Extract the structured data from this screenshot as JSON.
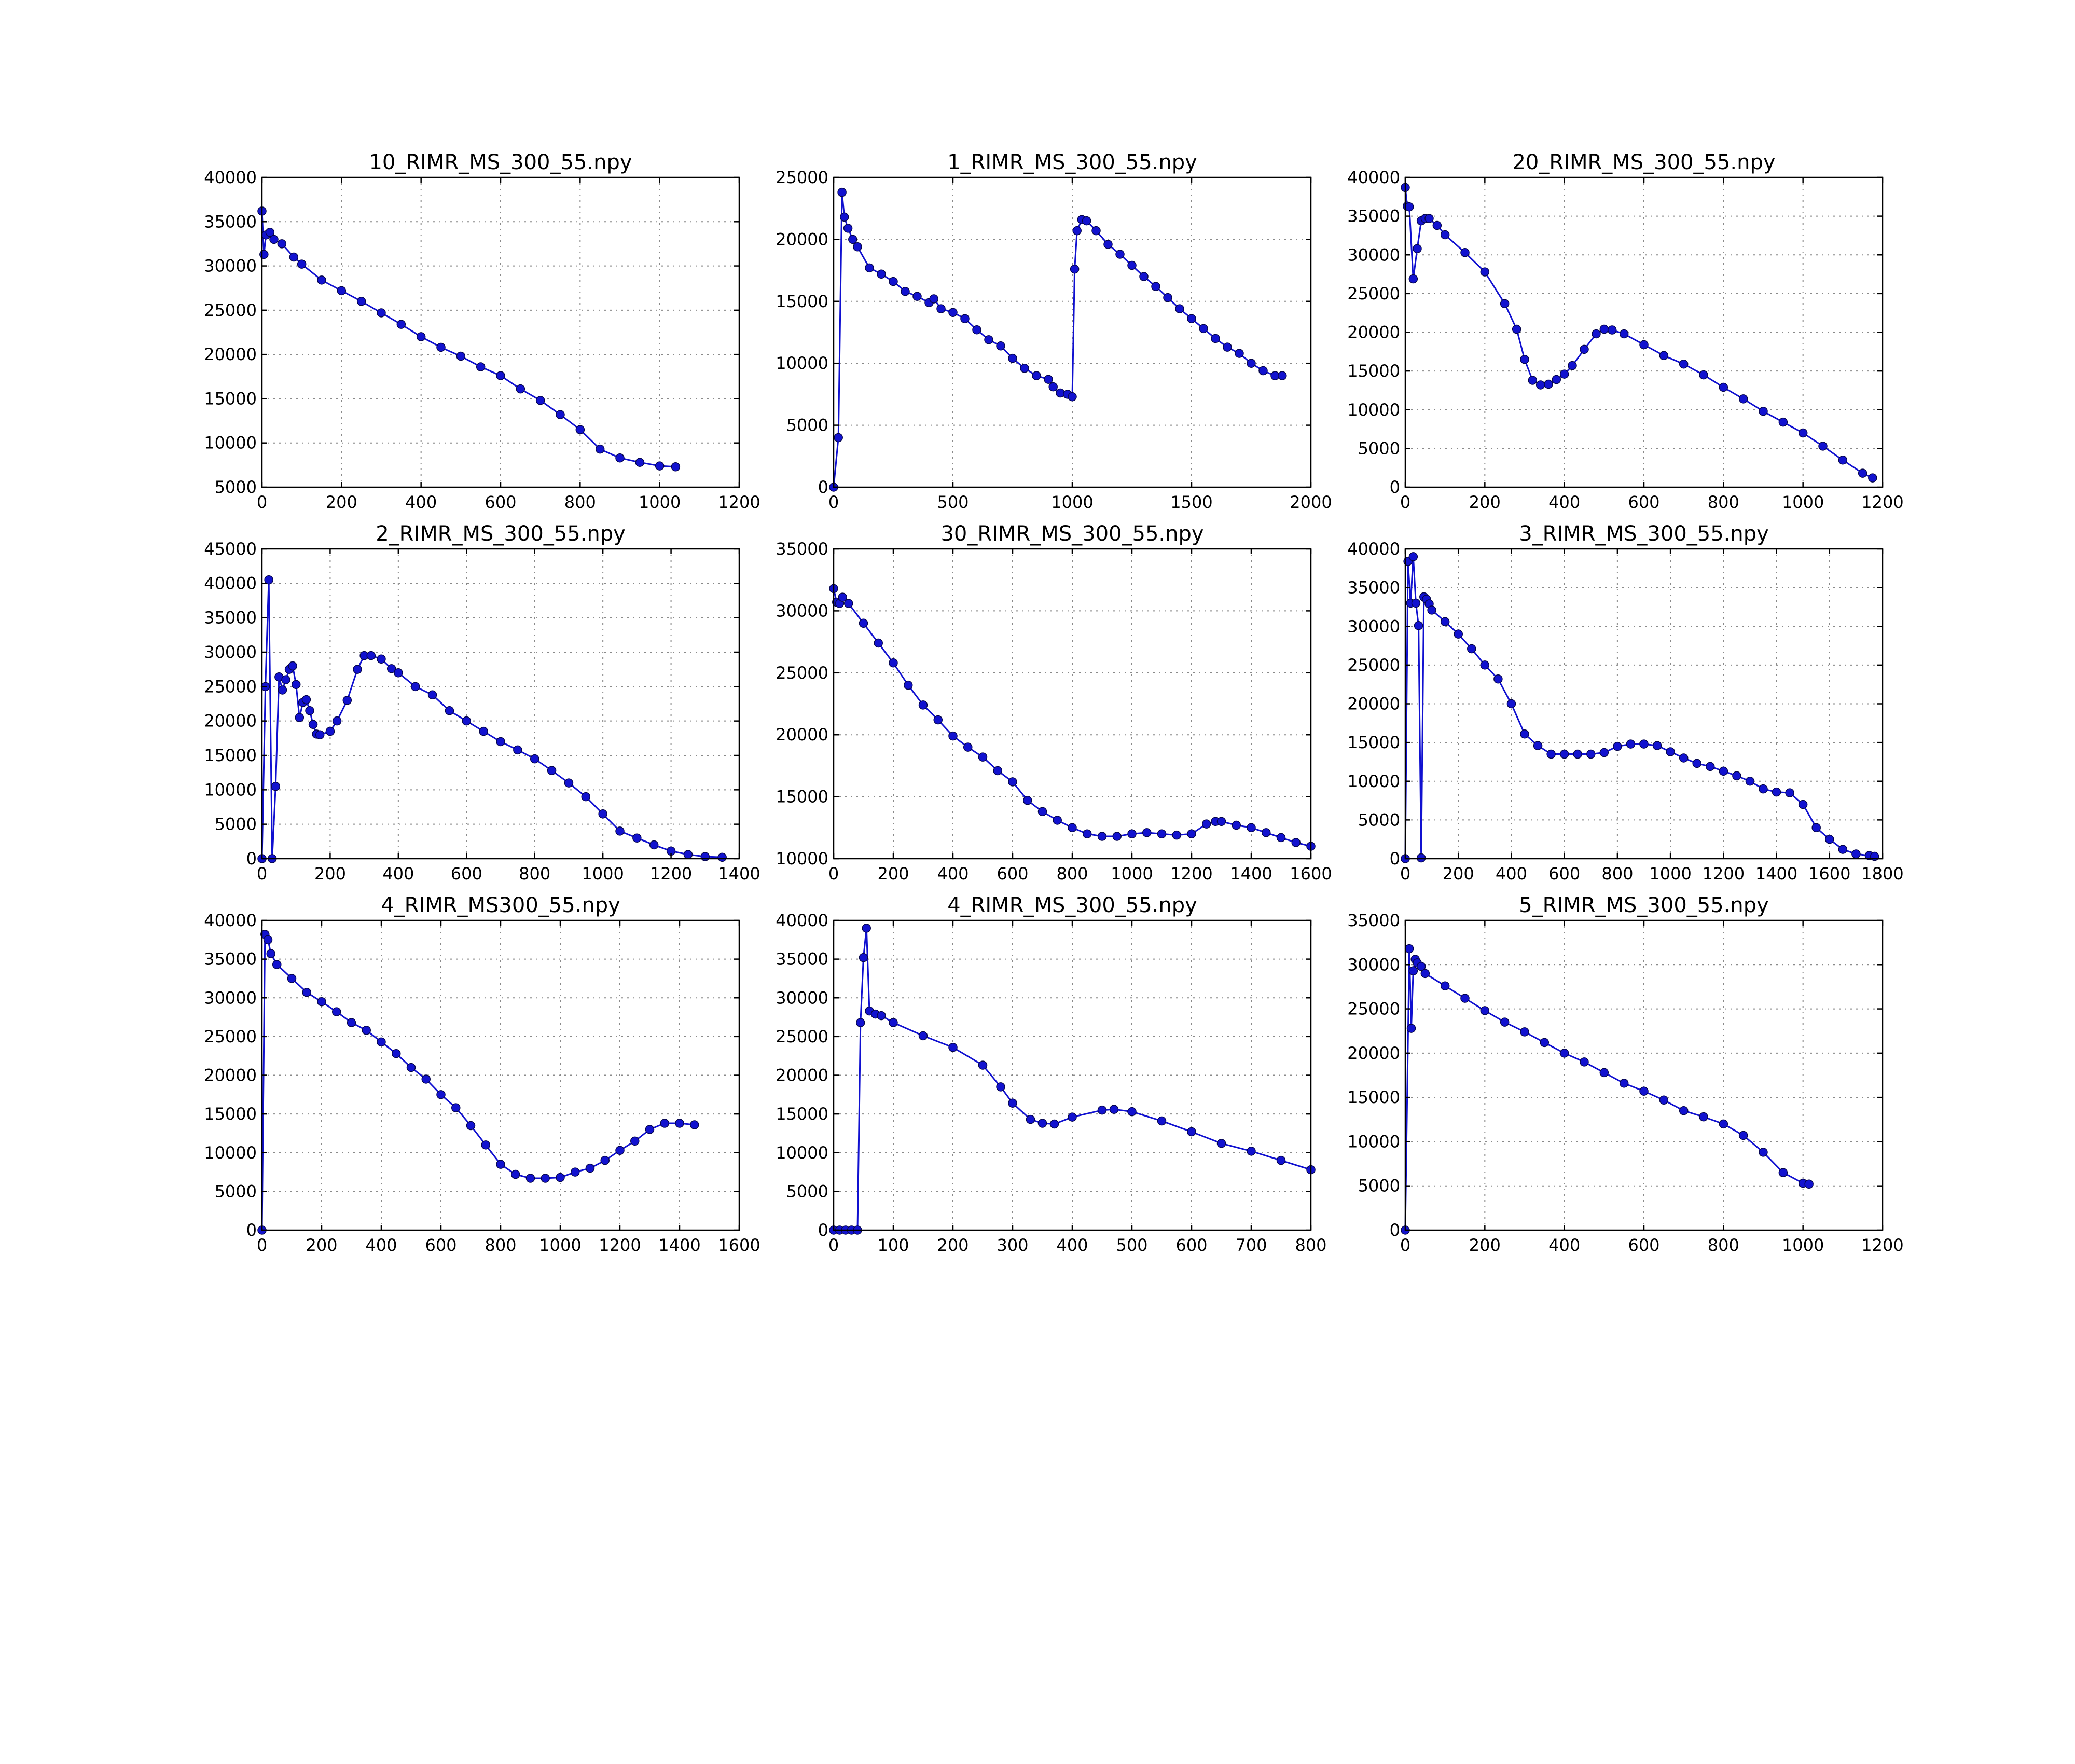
{
  "chart_data": [
    {
      "type": "line",
      "title": "10_RIMR_MS_300_55.npy",
      "xlim": [
        0,
        1200
      ],
      "ylim": [
        5000,
        40000
      ],
      "xticks": [
        0,
        200,
        400,
        600,
        800,
        1000,
        1200
      ],
      "yticks": [
        5000,
        10000,
        15000,
        20000,
        25000,
        30000,
        35000,
        40000
      ],
      "grid": true,
      "x": [
        0,
        5,
        10,
        20,
        30,
        50,
        80,
        100,
        150,
        200,
        250,
        300,
        350,
        400,
        450,
        500,
        550,
        600,
        650,
        700,
        750,
        800,
        850,
        900,
        950,
        1000,
        1040
      ],
      "y": [
        36200,
        31300,
        33500,
        33800,
        33000,
        32500,
        31000,
        30200,
        28400,
        27200,
        26000,
        24700,
        23400,
        22000,
        20800,
        19800,
        18600,
        17600,
        16100,
        14800,
        13200,
        11500,
        9300,
        8300,
        7800,
        7400,
        7300
      ]
    },
    {
      "type": "line",
      "title": "1_RIMR_MS_300_55.npy",
      "xlim": [
        0,
        2000
      ],
      "ylim": [
        0,
        25000
      ],
      "xticks": [
        0,
        500,
        1000,
        1500,
        2000
      ],
      "yticks": [
        0,
        5000,
        10000,
        15000,
        20000,
        25000
      ],
      "grid": true,
      "x": [
        0,
        20,
        35,
        45,
        60,
        80,
        100,
        150,
        200,
        250,
        300,
        350,
        400,
        420,
        450,
        500,
        550,
        600,
        650,
        700,
        750,
        800,
        850,
        900,
        920,
        950,
        980,
        1000,
        1010,
        1020,
        1040,
        1060,
        1100,
        1150,
        1200,
        1250,
        1300,
        1350,
        1400,
        1450,
        1500,
        1550,
        1600,
        1650,
        1700,
        1750,
        1800,
        1850,
        1880
      ],
      "y": [
        0,
        4000,
        23800,
        21800,
        20900,
        20000,
        19400,
        17700,
        17200,
        16600,
        15800,
        15400,
        14900,
        15200,
        14400,
        14100,
        13600,
        12700,
        11900,
        11400,
        10400,
        9600,
        9000,
        8700,
        8100,
        7600,
        7500,
        7300,
        17600,
        20700,
        21600,
        21500,
        20700,
        19600,
        18800,
        17900,
        17000,
        16200,
        15300,
        14400,
        13600,
        12800,
        12000,
        11300,
        10800,
        10000,
        9400,
        9000,
        9000
      ]
    },
    {
      "type": "line",
      "title": "20_RIMR_MS_300_55.npy",
      "xlim": [
        0,
        1200
      ],
      "ylim": [
        0,
        40000
      ],
      "xticks": [
        0,
        200,
        400,
        600,
        800,
        1000,
        1200
      ],
      "yticks": [
        0,
        5000,
        10000,
        15000,
        20000,
        25000,
        30000,
        35000,
        40000
      ],
      "grid": true,
      "x": [
        0,
        5,
        10,
        20,
        30,
        40,
        50,
        60,
        80,
        100,
        150,
        200,
        250,
        280,
        300,
        320,
        340,
        360,
        380,
        400,
        420,
        450,
        480,
        500,
        520,
        550,
        600,
        650,
        700,
        750,
        800,
        850,
        900,
        950,
        1000,
        1050,
        1100,
        1150,
        1175
      ],
      "y": [
        38700,
        36300,
        36200,
        26900,
        30800,
        34400,
        34700,
        34700,
        33800,
        32600,
        30300,
        27800,
        23700,
        20400,
        16500,
        13800,
        13200,
        13300,
        13900,
        14600,
        15700,
        17800,
        19800,
        20400,
        20300,
        19800,
        18400,
        17000,
        15900,
        14500,
        12900,
        11400,
        9800,
        8400,
        7000,
        5300,
        3500,
        1800,
        1200
      ]
    },
    {
      "type": "line",
      "title": "2_RIMR_MS_300_55.npy",
      "xlim": [
        0,
        1400
      ],
      "ylim": [
        0,
        45000
      ],
      "xticks": [
        0,
        200,
        400,
        600,
        800,
        1000,
        1200,
        1400
      ],
      "yticks": [
        0,
        5000,
        10000,
        15000,
        20000,
        25000,
        30000,
        35000,
        40000,
        45000
      ],
      "grid": true,
      "x": [
        0,
        10,
        20,
        30,
        40,
        50,
        60,
        70,
        80,
        90,
        100,
        110,
        120,
        130,
        140,
        150,
        160,
        170,
        200,
        220,
        250,
        280,
        300,
        320,
        350,
        380,
        400,
        450,
        500,
        550,
        600,
        650,
        700,
        750,
        800,
        850,
        900,
        950,
        1000,
        1050,
        1100,
        1150,
        1200,
        1250,
        1300,
        1350
      ],
      "y": [
        0,
        25000,
        40500,
        0,
        10500,
        26400,
        24500,
        26000,
        27500,
        28000,
        25300,
        20500,
        22700,
        23100,
        21500,
        19500,
        18100,
        18000,
        18500,
        20000,
        23000,
        27500,
        29500,
        29500,
        29000,
        27600,
        27000,
        25000,
        23800,
        21500,
        20000,
        18500,
        17000,
        15800,
        14500,
        12800,
        11000,
        9000,
        6500,
        4000,
        3000,
        2000,
        1100,
        600,
        300,
        200
      ]
    },
    {
      "type": "line",
      "title": "30_RIMR_MS_300_55.npy",
      "xlim": [
        0,
        1600
      ],
      "ylim": [
        10000,
        35000
      ],
      "xticks": [
        0,
        200,
        400,
        600,
        800,
        1000,
        1200,
        1400,
        1600
      ],
      "yticks": [
        10000,
        15000,
        20000,
        25000,
        30000,
        35000
      ],
      "grid": true,
      "x": [
        0,
        10,
        20,
        30,
        50,
        100,
        150,
        200,
        250,
        300,
        350,
        400,
        450,
        500,
        550,
        600,
        650,
        700,
        750,
        800,
        850,
        900,
        950,
        1000,
        1050,
        1100,
        1150,
        1200,
        1250,
        1280,
        1300,
        1350,
        1400,
        1450,
        1500,
        1550,
        1600
      ],
      "y": [
        31800,
        30700,
        30600,
        31100,
        30600,
        29000,
        27400,
        25800,
        24000,
        22400,
        21200,
        19900,
        19000,
        18200,
        17100,
        16200,
        14700,
        13800,
        13100,
        12500,
        12000,
        11800,
        11800,
        12000,
        12100,
        12000,
        11900,
        12000,
        12800,
        13000,
        13000,
        12700,
        12500,
        12100,
        11700,
        11300,
        11000
      ]
    },
    {
      "type": "line",
      "title": "3_RIMR_MS_300_55.npy",
      "xlim": [
        0,
        1800
      ],
      "ylim": [
        0,
        40000
      ],
      "xticks": [
        0,
        200,
        400,
        600,
        800,
        1000,
        1200,
        1400,
        1600,
        1800
      ],
      "yticks": [
        0,
        5000,
        10000,
        15000,
        20000,
        25000,
        30000,
        35000,
        40000
      ],
      "grid": true,
      "x": [
        0,
        10,
        20,
        30,
        40,
        50,
        60,
        70,
        80,
        90,
        100,
        150,
        200,
        250,
        300,
        350,
        400,
        450,
        500,
        550,
        600,
        650,
        700,
        750,
        800,
        850,
        900,
        950,
        1000,
        1050,
        1100,
        1150,
        1200,
        1250,
        1300,
        1350,
        1400,
        1450,
        1500,
        1550,
        1600,
        1650,
        1700,
        1750,
        1770
      ],
      "y": [
        0,
        38400,
        33000,
        39000,
        33000,
        30100,
        100,
        33800,
        33500,
        32900,
        32100,
        30600,
        29000,
        27100,
        25000,
        23200,
        20000,
        16100,
        14600,
        13500,
        13500,
        13500,
        13500,
        13700,
        14500,
        14800,
        14800,
        14600,
        13800,
        13000,
        12300,
        11900,
        11300,
        10700,
        10000,
        9000,
        8600,
        8500,
        7000,
        4000,
        2500,
        1200,
        600,
        400,
        300
      ]
    },
    {
      "type": "line",
      "title": "4_RIMR_MS300_55.npy",
      "xlim": [
        0,
        1600
      ],
      "ylim": [
        0,
        40000
      ],
      "xticks": [
        0,
        200,
        400,
        600,
        800,
        1000,
        1200,
        1400,
        1600
      ],
      "yticks": [
        0,
        5000,
        10000,
        15000,
        20000,
        25000,
        30000,
        35000,
        40000
      ],
      "grid": true,
      "x": [
        0,
        10,
        20,
        30,
        50,
        100,
        150,
        200,
        250,
        300,
        350,
        400,
        450,
        500,
        550,
        600,
        650,
        700,
        750,
        800,
        850,
        900,
        950,
        1000,
        1050,
        1100,
        1150,
        1200,
        1250,
        1300,
        1350,
        1400,
        1450
      ],
      "y": [
        0,
        38200,
        37500,
        35700,
        34300,
        32500,
        30700,
        29500,
        28200,
        26800,
        25800,
        24300,
        22800,
        21000,
        19500,
        17500,
        15800,
        13500,
        11000,
        8500,
        7200,
        6700,
        6700,
        6800,
        7500,
        8000,
        9000,
        10300,
        11500,
        13000,
        13800,
        13800,
        13600
      ]
    },
    {
      "type": "line",
      "title": "4_RIMR_MS_300_55.npy",
      "xlim": [
        0,
        800
      ],
      "ylim": [
        0,
        40000
      ],
      "xticks": [
        0,
        100,
        200,
        300,
        400,
        500,
        600,
        700,
        800
      ],
      "yticks": [
        0,
        5000,
        10000,
        15000,
        20000,
        25000,
        30000,
        35000,
        40000
      ],
      "grid": true,
      "x": [
        0,
        10,
        20,
        30,
        40,
        45,
        50,
        55,
        60,
        70,
        80,
        100,
        150,
        200,
        250,
        280,
        300,
        330,
        350,
        370,
        400,
        450,
        470,
        500,
        550,
        600,
        650,
        700,
        750,
        800
      ],
      "y": [
        0,
        0,
        0,
        0,
        0,
        26800,
        35200,
        39000,
        28300,
        27900,
        27700,
        26800,
        25100,
        23600,
        21300,
        18500,
        16400,
        14300,
        13800,
        13700,
        14600,
        15500,
        15600,
        15300,
        14100,
        12700,
        11200,
        10200,
        9000,
        7800
      ]
    },
    {
      "type": "line",
      "title": "5_RIMR_MS_300_55.npy",
      "xlim": [
        0,
        1200
      ],
      "ylim": [
        0,
        35000
      ],
      "xticks": [
        0,
        200,
        400,
        600,
        800,
        1000,
        1200
      ],
      "yticks": [
        0,
        5000,
        10000,
        15000,
        20000,
        25000,
        30000,
        35000
      ],
      "grid": true,
      "x": [
        0,
        10,
        15,
        20,
        25,
        30,
        40,
        50,
        100,
        150,
        200,
        250,
        300,
        350,
        400,
        450,
        500,
        550,
        600,
        650,
        700,
        750,
        800,
        850,
        900,
        950,
        1000,
        1015
      ],
      "y": [
        0,
        31800,
        22800,
        29300,
        30600,
        30200,
        29800,
        29000,
        27600,
        26200,
        24800,
        23500,
        22400,
        21200,
        20000,
        19000,
        17800,
        16600,
        15700,
        14700,
        13500,
        12800,
        12000,
        10700,
        8800,
        6500,
        5300,
        5200
      ]
    }
  ]
}
